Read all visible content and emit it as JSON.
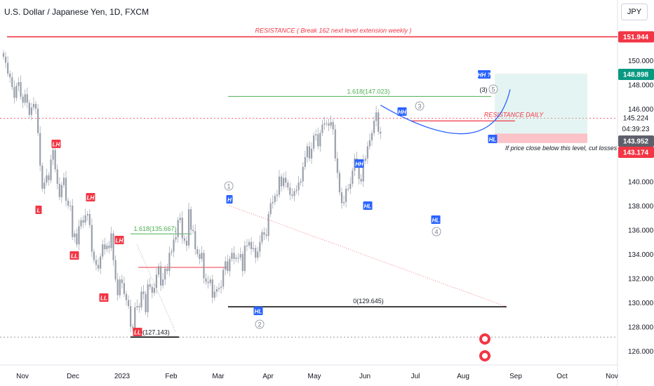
{
  "header": {
    "title": "U.S. Dollar / Japanese Yen, 1D, FXCM",
    "currency": "JPY"
  },
  "chart_data": {
    "type": "candlestick",
    "y_ticks": [
      "150.000",
      "148.000",
      "146.000",
      "140.000",
      "138.000",
      "136.000",
      "134.000",
      "132.000",
      "130.000",
      "128.000",
      "126.000"
    ],
    "x_labels": [
      "Nov",
      "Dec",
      "2023",
      "Feb",
      "Mar",
      "Apr",
      "May",
      "Jun",
      "Jul",
      "Aug",
      "Sep",
      "Oct",
      "Nov"
    ],
    "price_tags": [
      {
        "value": 151.944,
        "label": "151.944",
        "color": "#f23645"
      },
      {
        "value": 148.898,
        "label": "148.898",
        "color": "#089981"
      },
      {
        "value": 145.224,
        "label": "145.224",
        "color": "none"
      },
      {
        "value": 143.952,
        "label": "143.952",
        "color": "#5d606b"
      },
      {
        "value": 143.174,
        "label": "143.174",
        "color": "#f23645"
      }
    ],
    "countdown": "04:39:23",
    "lines": [
      {
        "label": "RESISTANCE ( Break 162 next level extension weekly )",
        "value": 151.944,
        "color": "#f23645"
      },
      {
        "label": "1.618(147.023)",
        "value": 147.023,
        "color": "#4caf50"
      },
      {
        "label": "1.618(135.667)",
        "value": 135.667,
        "color": "#4caf50"
      },
      {
        "label": "0(129.645)",
        "value": 129.645,
        "color": "#000000"
      },
      {
        "label": "0(127.143)",
        "value": 127.143,
        "color": "#000000"
      },
      {
        "label": "RESISTANCE DAILY",
        "value": 145.0,
        "color": "#f23645"
      }
    ],
    "wave_labels": [
      {
        "text": "LH",
        "value": 143.5,
        "kind": "red"
      },
      {
        "text": "L",
        "value": 137.8,
        "kind": "red"
      },
      {
        "text": "LH",
        "value": 139.2,
        "kind": "red"
      },
      {
        "text": "LL",
        "value": 133.8,
        "kind": "red"
      },
      {
        "text": "LL",
        "value": 130.3,
        "kind": "red"
      },
      {
        "text": "LH",
        "value": 134.6,
        "kind": "red"
      },
      {
        "text": "LL",
        "value": 127.6,
        "kind": "red"
      },
      {
        "text": "H",
        "value": 138.8,
        "kind": "blue"
      },
      {
        "text": "HL",
        "value": 129.0,
        "kind": "blue"
      },
      {
        "text": "HH",
        "value": 141.6,
        "kind": "blue"
      },
      {
        "text": "HL",
        "value": 138.2,
        "kind": "blue"
      },
      {
        "text": "HH",
        "value": 145.7,
        "kind": "blue"
      },
      {
        "text": "HL",
        "value": 136.8,
        "kind": "blue"
      },
      {
        "text": "HH ?",
        "value": 149.0,
        "kind": "blue"
      },
      {
        "text": "HL",
        "value": 143.7,
        "kind": "blue"
      }
    ],
    "circle_labels": [
      "1",
      "2",
      "3",
      "4",
      "5"
    ],
    "text_notes": [
      "(3)",
      "If price close below this level, cut losses"
    ],
    "closes": [
      150.3,
      149.8,
      148.9,
      148.6,
      147.8,
      146.9,
      147.9,
      148.2,
      147.0,
      146.5,
      147.2,
      146.5,
      145.5,
      146.1,
      146.4,
      146.0,
      144.0,
      141.3,
      139.4,
      139.9,
      140.5,
      140.1,
      141.8,
      142.6,
      141.0,
      139.8,
      138.7,
      139.7,
      140.3,
      138.4,
      138.0,
      138.0,
      135.4,
      135.7,
      134.8,
      136.3,
      136.8,
      136.6,
      137.2,
      137.3,
      136.4,
      134.2,
      133.5,
      133.1,
      132.8,
      133.8,
      134.8,
      134.4,
      134.7,
      134.5,
      135.7,
      133.5,
      131.9,
      130.6,
      131.9,
      131.6,
      130.7,
      130.2,
      129.7,
      128.0,
      127.9,
      129.6,
      129.7,
      129.6,
      130.9,
      130.7,
      129.2,
      131.5,
      131.3,
      130.8,
      131.2,
      132.3,
      133.0,
      131.4,
      131.9,
      132.8,
      132.6,
      134.1,
      134.2,
      135.2,
      135.4,
      136.8,
      137.0,
      135.3,
      135.1,
      134.7,
      137.7,
      136.0,
      135.9,
      134.4,
      134.0,
      133.6,
      134.1,
      132.0,
      131.7,
      131.6,
      131.9,
      130.4,
      130.9,
      131.1,
      131.2,
      131.3,
      132.7,
      133.4,
      132.6,
      133.6,
      134.1,
      133.6,
      133.7,
      133.7,
      134.0,
      132.6,
      134.7,
      134.7,
      135.0,
      134.4,
      134.5,
      133.7,
      134.2,
      135.0,
      135.8,
      135.6,
      135.5,
      137.3,
      138.2,
      138.3,
      138.8,
      138.9,
      140.4,
      139.6,
      140.3,
      139.9,
      139.5,
      138.9,
      138.8,
      139.2,
      139.3,
      139.9,
      140.0,
      141.2,
      142.0,
      142.9,
      141.9,
      142.7,
      143.8,
      143.9,
      142.9,
      144.0,
      144.7,
      144.8,
      144.8,
      144.6,
      144.9,
      144.3,
      141.9,
      140.7,
      139.1,
      138.2,
      138.3,
      139.4,
      139.4,
      139.8,
      140.9,
      141.9,
      141.4,
      140.2,
      140.0,
      141.7,
      141.9,
      142.9,
      143.4,
      144.0,
      145.0,
      145.7,
      144.1,
      143.95
    ]
  }
}
